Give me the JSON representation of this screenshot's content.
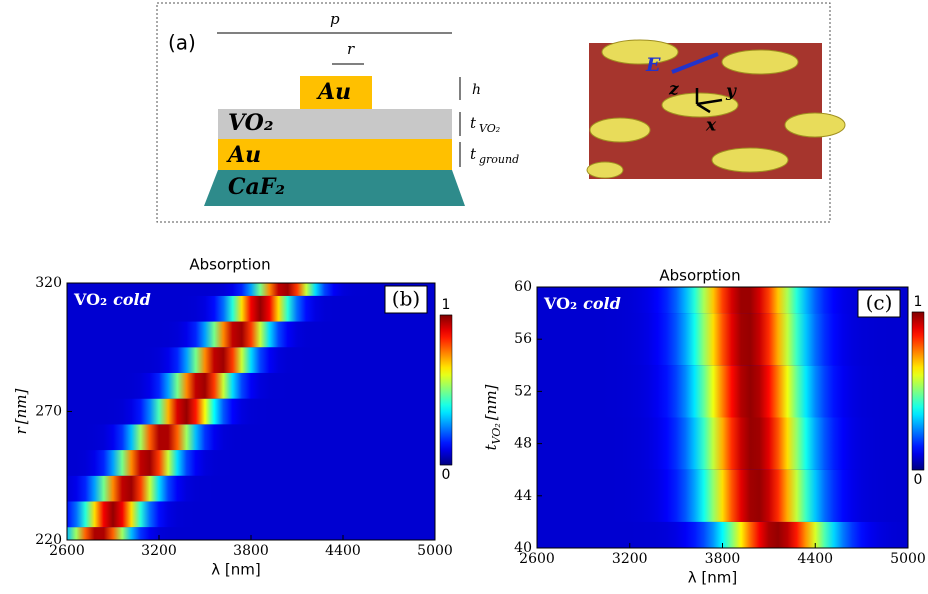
{
  "panel_a": {
    "label": "(a)",
    "p": "p",
    "r": "r",
    "h": "h",
    "layers": [
      "Au",
      "VO₂",
      "Au",
      "CaF₂"
    ],
    "t_vo2": {
      "main": "t",
      "sub": "VO₂"
    },
    "t_ground": {
      "main": "t",
      "sub": "ground"
    },
    "field": "E",
    "axes": [
      "z",
      "y",
      "x"
    ]
  },
  "chart_data": [
    {
      "type": "heatmap",
      "title": "Absorption",
      "panel_label": "(b)",
      "annotation": {
        "main": "VO₂",
        "italic": "cold"
      },
      "xlabel": "λ [nm]",
      "ylabel": {
        "main": "r",
        "unit": "[nm]"
      },
      "xlim": [
        2600,
        5000
      ],
      "xticks": [
        2600,
        3200,
        3800,
        4400,
        5000
      ],
      "ylim": [
        220,
        320
      ],
      "yticks": [
        220,
        270,
        320
      ],
      "rows": [
        220,
        230,
        240,
        250,
        260,
        270,
        280,
        290,
        300,
        310,
        320
      ],
      "peaks": [
        2810,
        2900,
        3000,
        3120,
        3230,
        3370,
        3480,
        3600,
        3720,
        3860,
        4020
      ],
      "clim": [
        0,
        1
      ],
      "cticks": [
        0,
        1
      ]
    },
    {
      "type": "heatmap",
      "title": "Absorption",
      "panel_label": "(c)",
      "annotation": {
        "main": "VO₂",
        "italic": "cold"
      },
      "xlabel": "λ [nm]",
      "ylabel": {
        "main": "t",
        "sub": "VO₂",
        "unit": "[nm]"
      },
      "xlim": [
        2600,
        5000
      ],
      "xticks": [
        2600,
        3200,
        3800,
        4400,
        5000
      ],
      "ylim": [
        40,
        60
      ],
      "yticks": [
        40,
        44,
        48,
        52,
        56,
        60
      ],
      "rows": [
        40,
        44,
        48,
        52,
        56,
        60
      ],
      "peaks": [
        4150,
        4020,
        4000,
        3980,
        3960,
        3950
      ],
      "clim": [
        0,
        1
      ],
      "cticks": [
        0,
        1
      ]
    }
  ]
}
